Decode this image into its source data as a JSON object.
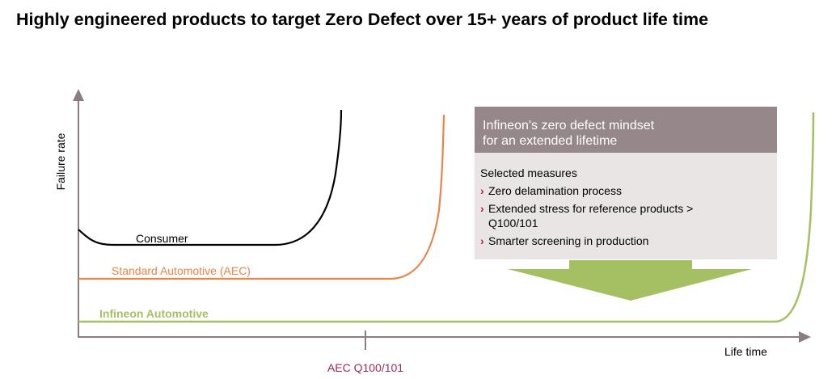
{
  "title": "Highly engineered products to target Zero Defect over 15+ years of product life time",
  "axes": {
    "y_label": "Failure rate",
    "x_label": "Life time",
    "x_marker_label": "AEC Q100/101"
  },
  "curves": {
    "consumer": {
      "label": "Consumer",
      "color": "#000000"
    },
    "standard": {
      "label": "Standard Automotive (AEC)",
      "color": "#e8844a"
    },
    "infineon": {
      "label": "Infineon Automotive",
      "color": "#a5c063"
    }
  },
  "callout": {
    "header_line1": "Infineon's zero defect mindset",
    "header_line2": "for an extended lifetime",
    "measures_title": "Selected measures",
    "measures": [
      {
        "line1": "Zero delamination process",
        "line2": ""
      },
      {
        "line1": "Extended stress for reference products >",
        "line2": "Q100/101"
      },
      {
        "line1": "Smarter screening in production",
        "line2": ""
      }
    ],
    "header_color": "#95878a",
    "body_color": "#e9e5e5",
    "bullet_color": "#c3174f",
    "arrow_color": "#a5c063"
  },
  "colors": {
    "axis": "#8a7d80",
    "marker_label": "#9b2a5a"
  }
}
